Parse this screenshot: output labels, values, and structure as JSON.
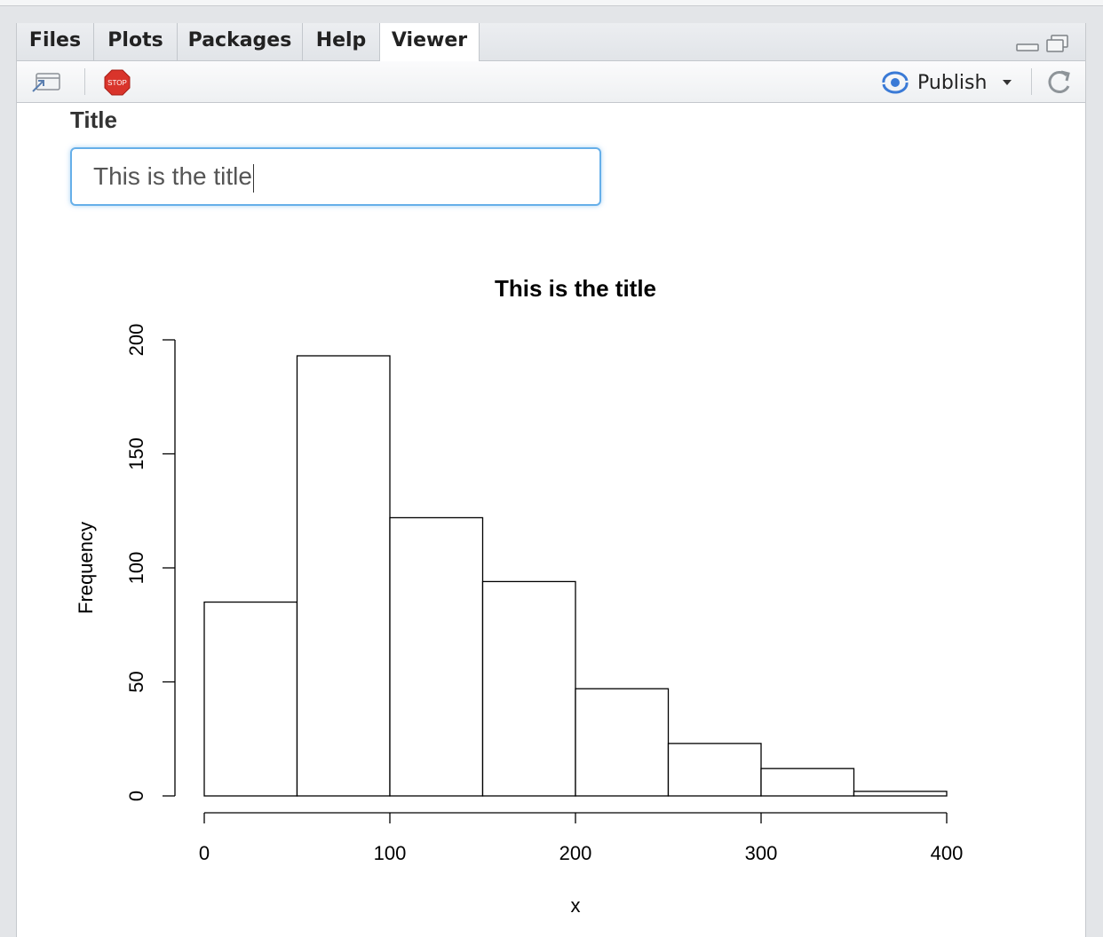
{
  "tabs": [
    {
      "label": "Files"
    },
    {
      "label": "Plots"
    },
    {
      "label": "Packages"
    },
    {
      "label": "Help"
    },
    {
      "label": "Viewer"
    }
  ],
  "active_tab": "Viewer",
  "toolbar": {
    "publish_label": "Publish",
    "stop_icon_text": "STOP"
  },
  "app": {
    "input_label": "Title",
    "input_value": "This is the title"
  },
  "chart_data": {
    "type": "bar",
    "title": "This is the title",
    "xlabel": "x",
    "ylabel": "Frequency",
    "bins": [
      [
        0,
        50
      ],
      [
        50,
        100
      ],
      [
        100,
        150
      ],
      [
        150,
        200
      ],
      [
        200,
        250
      ],
      [
        250,
        300
      ],
      [
        300,
        350
      ],
      [
        350,
        400
      ]
    ],
    "values": [
      85,
      193,
      122,
      94,
      47,
      23,
      12,
      2
    ],
    "xlim": [
      0,
      400
    ],
    "ylim": [
      0,
      200
    ],
    "xticks": [
      0,
      100,
      200,
      300,
      400
    ],
    "yticks": [
      0,
      50,
      100,
      150,
      200
    ],
    "grid": false
  }
}
